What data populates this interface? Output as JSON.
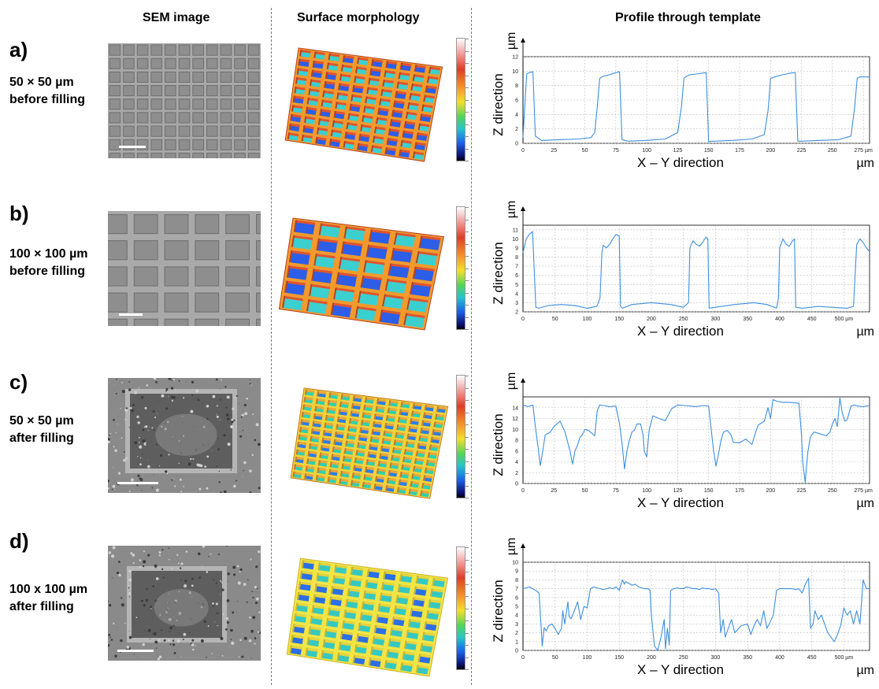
{
  "headers": {
    "sem": "SEM image",
    "morph": "Surface morphology",
    "profile": "Profile through template"
  },
  "axis": {
    "ylabel": "Z direction",
    "xlabel": "X – Y direction",
    "unit": "µm",
    "tick_unit": "µm"
  },
  "rows": [
    {
      "letter": "a)",
      "line1": "50 × 50 µm",
      "line2": "before filling",
      "pattern": "small",
      "palette": "before",
      "cells": 10
    },
    {
      "letter": "b)",
      "line1": "100 × 100 µm",
      "line2": "before filling",
      "pattern": "large",
      "palette": "before",
      "cells": 6
    },
    {
      "letter": "c)",
      "line1": "50 × 50 µm",
      "line2": "after filling",
      "pattern": "closeup",
      "palette": "after",
      "cells": 12
    },
    {
      "letter": "d)",
      "line1": "100 x 100 µm",
      "line2": "after filling",
      "pattern": "closeup",
      "palette": "after2",
      "cells": 9
    }
  ],
  "chart_data": [
    {
      "type": "line",
      "title": "",
      "xlabel": "X – Y direction",
      "ylabel": "Z direction",
      "xlim": [
        0,
        280
      ],
      "ylim": [
        0,
        12
      ],
      "xticks": [
        0,
        25,
        50,
        75,
        100,
        125,
        150,
        175,
        200,
        225,
        250,
        275
      ],
      "yticks": [
        0,
        2,
        4,
        6,
        8,
        10,
        12
      ],
      "last_x_tick_label": "275 µm",
      "grid": true,
      "series": [
        {
          "x": [
            0,
            3,
            5,
            8,
            10,
            15,
            30,
            45,
            55,
            58,
            60,
            62,
            65,
            70,
            75,
            78,
            80,
            85,
            100,
            115,
            125,
            128,
            130,
            132,
            135,
            140,
            148,
            150,
            152,
            155,
            170,
            185,
            195,
            198,
            200,
            205,
            210,
            215,
            220,
            222,
            225,
            240,
            255,
            265,
            268,
            270,
            272,
            275,
            280
          ],
          "y": [
            0.8,
            9.6,
            9.8,
            9.9,
            1.0,
            0.4,
            0.5,
            0.6,
            0.8,
            1.5,
            5.0,
            9.0,
            9.3,
            9.5,
            9.8,
            9.9,
            0.5,
            0.3,
            0.4,
            0.6,
            1.5,
            5.0,
            9.0,
            9.3,
            9.5,
            9.6,
            9.8,
            0.2,
            0.3,
            0.3,
            0.4,
            0.6,
            1.2,
            4.5,
            9.0,
            9.3,
            9.5,
            9.7,
            9.8,
            0.3,
            0.3,
            0.4,
            0.5,
            1.0,
            5.0,
            9.0,
            9.2,
            9.2,
            9.2
          ]
        }
      ]
    },
    {
      "type": "line",
      "title": "",
      "xlabel": "X – Y direction",
      "ylabel": "Z direction",
      "xlim": [
        0,
        540
      ],
      "ylim": [
        2,
        11.5
      ],
      "xticks": [
        0,
        50,
        100,
        150,
        200,
        250,
        300,
        350,
        400,
        450,
        500
      ],
      "yticks": [
        2,
        3,
        4,
        5,
        6,
        7,
        8,
        9,
        10,
        11
      ],
      "last_x_tick_label": "500 µm",
      "grid": true,
      "series": [
        {
          "x": [
            0,
            5,
            10,
            15,
            20,
            25,
            40,
            60,
            80,
            100,
            115,
            120,
            123,
            125,
            130,
            135,
            140,
            145,
            150,
            152,
            155,
            170,
            200,
            230,
            250,
            258,
            260,
            265,
            270,
            275,
            280,
            285,
            288,
            290,
            300,
            330,
            360,
            380,
            395,
            398,
            400,
            405,
            410,
            415,
            420,
            423,
            425,
            435,
            460,
            480,
            505,
            515,
            520,
            525,
            530,
            535,
            540
          ],
          "y": [
            8.5,
            10.0,
            10.5,
            10.8,
            2.5,
            2.4,
            2.7,
            2.8,
            2.7,
            2.4,
            2.6,
            3.5,
            8.5,
            9.3,
            9.0,
            9.4,
            10.0,
            10.5,
            10.3,
            2.6,
            2.4,
            2.8,
            3.0,
            2.8,
            2.5,
            3.0,
            9.0,
            9.8,
            9.4,
            9.2,
            9.6,
            10.2,
            10.0,
            2.4,
            2.5,
            2.8,
            3.0,
            2.8,
            2.4,
            3.5,
            9.0,
            10.0,
            9.4,
            9.2,
            9.8,
            10.0,
            2.5,
            2.4,
            2.6,
            2.5,
            2.4,
            2.6,
            9.4,
            10.0,
            9.6,
            9.0,
            8.6
          ]
        }
      ]
    },
    {
      "type": "line",
      "title": "",
      "xlabel": "X – Y direction",
      "ylabel": "Z direction",
      "xlim": [
        0,
        280
      ],
      "ylim": [
        0,
        16
      ],
      "xticks": [
        0,
        25,
        50,
        75,
        100,
        125,
        150,
        175,
        200,
        225,
        250,
        275
      ],
      "yticks": [
        0,
        2,
        4,
        6,
        8,
        10,
        12,
        14
      ],
      "last_x_tick_label": "275 µm",
      "grid": true,
      "series": [
        {
          "x": [
            0,
            4,
            8,
            10,
            12,
            14,
            16,
            18,
            20,
            22,
            25,
            30,
            34,
            38,
            40,
            42,
            44,
            46,
            48,
            50,
            53,
            56,
            58,
            60,
            62,
            65,
            70,
            75,
            78,
            80,
            82,
            84,
            86,
            88,
            90,
            92,
            95,
            97,
            98,
            100,
            102,
            105,
            110,
            115,
            120,
            125,
            130,
            135,
            140,
            145,
            150,
            154,
            156,
            158,
            160,
            162,
            165,
            168,
            170,
            175,
            180,
            185,
            188,
            190,
            195,
            198,
            200,
            202,
            205,
            210,
            215,
            220,
            223,
            225,
            226,
            228,
            230,
            232,
            235,
            240,
            245,
            248,
            250,
            252,
            254,
            256,
            258,
            260,
            262,
            265,
            268,
            270,
            275,
            280
          ],
          "y": [
            14.5,
            14.2,
            14.5,
            10.5,
            7.0,
            3.3,
            6.0,
            9.0,
            9.2,
            9.5,
            10.5,
            11.5,
            9.5,
            6.0,
            3.6,
            6.0,
            7.0,
            8.5,
            9.0,
            10.0,
            9.8,
            9.2,
            8.8,
            13.5,
            14.5,
            14.4,
            14.2,
            14.3,
            11.0,
            7.5,
            2.7,
            6.0,
            8.0,
            9.5,
            9.8,
            11.0,
            11.0,
            9.0,
            6.0,
            4.9,
            10.0,
            12.5,
            12.0,
            11.6,
            13.8,
            14.5,
            14.4,
            14.3,
            14.2,
            14.4,
            14.3,
            6.0,
            3.2,
            5.5,
            8.0,
            9.5,
            9.8,
            9.0,
            7.6,
            7.5,
            8.2,
            7.2,
            9.5,
            10.8,
            11.5,
            14.0,
            12.0,
            15.5,
            15.2,
            15.0,
            15.0,
            14.9,
            14.8,
            9.0,
            4.0,
            0.2,
            5.5,
            8.5,
            9.5,
            9.2,
            8.8,
            9.5,
            11.0,
            12.0,
            10.5,
            15.8,
            13.0,
            11.5,
            11.8,
            14.3,
            14.5,
            14.3,
            14.2,
            14.4
          ]
        }
      ]
    },
    {
      "type": "line",
      "title": "",
      "xlabel": "X – Y direction",
      "ylabel": "Z direction",
      "xlim": [
        0,
        540
      ],
      "ylim": [
        0,
        10
      ],
      "xticks": [
        0,
        50,
        100,
        150,
        200,
        250,
        300,
        350,
        400,
        450,
        500
      ],
      "yticks": [
        0,
        1,
        2,
        3,
        4,
        5,
        6,
        7,
        8,
        9,
        10
      ],
      "last_x_tick_label": "500 µm",
      "grid": true,
      "series": [
        {
          "x": [
            0,
            10,
            20,
            25,
            28,
            30,
            33,
            36,
            40,
            45,
            50,
            55,
            60,
            62,
            65,
            70,
            72,
            75,
            80,
            85,
            90,
            95,
            100,
            105,
            110,
            115,
            120,
            125,
            130,
            135,
            140,
            145,
            150,
            155,
            158,
            160,
            165,
            170,
            175,
            180,
            185,
            190,
            195,
            198,
            200,
            202,
            205,
            210,
            215,
            220,
            222,
            225,
            228,
            230,
            235,
            240,
            245,
            250,
            255,
            260,
            265,
            270,
            275,
            280,
            285,
            290,
            295,
            300,
            305,
            308,
            312,
            315,
            320,
            325,
            330,
            340,
            350,
            355,
            360,
            365,
            370,
            375,
            380,
            385,
            390,
            395,
            400,
            410,
            420,
            425,
            430,
            435,
            440,
            445,
            448,
            452,
            455,
            460,
            465,
            470,
            475,
            480,
            485,
            490,
            495,
            500,
            505,
            510,
            515,
            520,
            525,
            530,
            535,
            540
          ],
          "y": [
            7.0,
            7.2,
            6.8,
            6.5,
            3.0,
            0.5,
            2.6,
            2.2,
            2.8,
            3.0,
            2.5,
            1.8,
            2.5,
            4.5,
            3.0,
            5.5,
            3.8,
            3.6,
            4.5,
            5.5,
            3.5,
            5.0,
            4.8,
            7.0,
            7.2,
            7.1,
            7.0,
            6.9,
            7.0,
            7.1,
            7.0,
            7.2,
            6.8,
            8.0,
            7.5,
            7.8,
            7.6,
            7.4,
            7.5,
            7.2,
            7.1,
            7.0,
            7.0,
            6.8,
            4.0,
            2.5,
            0.5,
            0.0,
            1.5,
            3.5,
            0.2,
            2.5,
            0.6,
            6.8,
            7.0,
            7.1,
            7.0,
            7.0,
            7.2,
            7.1,
            7.0,
            7.0,
            6.9,
            7.1,
            7.0,
            7.0,
            6.9,
            7.0,
            6.5,
            2.0,
            3.5,
            1.5,
            2.5,
            3.5,
            2.0,
            2.8,
            3.0,
            1.8,
            2.8,
            3.5,
            2.8,
            4.5,
            2.5,
            3.2,
            4.0,
            6.8,
            7.0,
            7.0,
            7.0,
            6.9,
            7.0,
            6.5,
            7.5,
            8.2,
            2.5,
            3.0,
            4.5,
            3.5,
            4.0,
            3.0,
            2.0,
            1.5,
            1.0,
            1.8,
            2.8,
            4.8,
            4.0,
            4.5,
            3.0,
            4.5,
            3.0,
            8.0,
            7.0,
            7.0
          ]
        }
      ]
    }
  ]
}
